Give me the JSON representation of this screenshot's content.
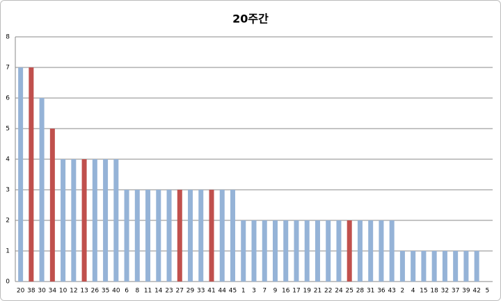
{
  "chart_data": {
    "type": "bar",
    "title": "20주간",
    "categories": [
      "20",
      "38",
      "30",
      "34",
      "10",
      "12",
      "13",
      "26",
      "35",
      "40",
      "6",
      "8",
      "11",
      "14",
      "23",
      "27",
      "29",
      "33",
      "41",
      "44",
      "45",
      "1",
      "3",
      "7",
      "9",
      "16",
      "17",
      "19",
      "21",
      "22",
      "24",
      "25",
      "28",
      "31",
      "36",
      "43",
      "2",
      "4",
      "15",
      "18",
      "32",
      "37",
      "39",
      "42",
      "5"
    ],
    "values": [
      7,
      7,
      6,
      5,
      4,
      4,
      4,
      4,
      4,
      4,
      3,
      3,
      3,
      3,
      3,
      3,
      3,
      3,
      3,
      3,
      3,
      2,
      2,
      2,
      2,
      2,
      2,
      2,
      2,
      2,
      2,
      2,
      2,
      2,
      2,
      2,
      1,
      1,
      1,
      1,
      1,
      1,
      1,
      1,
      0
    ],
    "colors": [
      "#95b3d7",
      "#c0504d",
      "#95b3d7",
      "#c0504d",
      "#95b3d7",
      "#95b3d7",
      "#c0504d",
      "#95b3d7",
      "#95b3d7",
      "#95b3d7",
      "#95b3d7",
      "#95b3d7",
      "#95b3d7",
      "#95b3d7",
      "#95b3d7",
      "#c0504d",
      "#95b3d7",
      "#95b3d7",
      "#c0504d",
      "#95b3d7",
      "#95b3d7",
      "#95b3d7",
      "#95b3d7",
      "#95b3d7",
      "#95b3d7",
      "#95b3d7",
      "#95b3d7",
      "#95b3d7",
      "#95b3d7",
      "#95b3d7",
      "#95b3d7",
      "#c0504d",
      "#95b3d7",
      "#95b3d7",
      "#95b3d7",
      "#95b3d7",
      "#95b3d7",
      "#95b3d7",
      "#95b3d7",
      "#95b3d7",
      "#95b3d7",
      "#95b3d7",
      "#95b3d7",
      "#95b3d7",
      "#95b3d7"
    ],
    "ylim": [
      0,
      8
    ],
    "yticks": [
      0,
      1,
      2,
      3,
      4,
      5,
      6,
      7,
      8
    ],
    "grid": true
  }
}
